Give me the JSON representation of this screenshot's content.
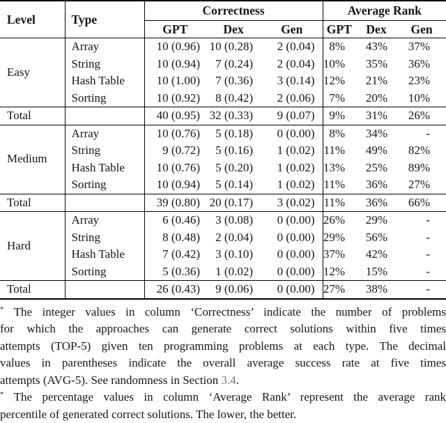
{
  "table": {
    "header": {
      "level": "Level",
      "type": "Type",
      "groups": [
        {
          "label": "Correctness",
          "cols": [
            "GPT",
            "Dex",
            "Gen"
          ]
        },
        {
          "label": "Average Rank",
          "cols": [
            "GPT",
            "Dex",
            "Gen"
          ]
        }
      ]
    },
    "sections": [
      {
        "level": "Easy",
        "rows": [
          {
            "type": "Array",
            "correctness": [
              "10 (0.96)",
              "10 (0.28)",
              "2 (0.04)"
            ],
            "avg_rank": [
              "8%",
              "43%",
              "37%"
            ]
          },
          {
            "type": "String",
            "correctness": [
              "10 (0.94)",
              "7 (0.24)",
              "2 (0.04)"
            ],
            "avg_rank": [
              "10%",
              "35%",
              "36%"
            ]
          },
          {
            "type": "Hash Table",
            "correctness": [
              "10 (1.00)",
              "7 (0.36)",
              "3 (0.14)"
            ],
            "avg_rank": [
              "12%",
              "21%",
              "23%"
            ]
          },
          {
            "type": "Sorting",
            "correctness": [
              "10 (0.92)",
              "8 (0.42)",
              "2 (0.06)"
            ],
            "avg_rank": [
              "7%",
              "20%",
              "10%"
            ]
          }
        ],
        "total": {
          "label": "Total",
          "correctness": [
            "40 (0.95)",
            "32 (0.33)",
            "9 (0.07)"
          ],
          "avg_rank": [
            "9%",
            "31%",
            "26%"
          ]
        }
      },
      {
        "level": "Medium",
        "rows": [
          {
            "type": "Array",
            "correctness": [
              "10 (0.76)",
              "5 (0.18)",
              "0 (0.00)"
            ],
            "avg_rank": [
              "8%",
              "34%",
              "-"
            ]
          },
          {
            "type": "String",
            "correctness": [
              "9 (0.72)",
              "5 (0.16)",
              "1 (0.02)"
            ],
            "avg_rank": [
              "11%",
              "49%",
              "82%"
            ]
          },
          {
            "type": "Hash Table",
            "correctness": [
              "10 (0.76)",
              "5 (0.20)",
              "1 (0.02)"
            ],
            "avg_rank": [
              "13%",
              "25%",
              "89%"
            ]
          },
          {
            "type": "Sorting",
            "correctness": [
              "10 (0.94)",
              "5 (0.14)",
              "1 (0.02)"
            ],
            "avg_rank": [
              "11%",
              "36%",
              "27%"
            ]
          }
        ],
        "total": {
          "label": "Total",
          "correctness": [
            "39 (0.80)",
            "20 (0.17)",
            "3 (0.02)"
          ],
          "avg_rank": [
            "11%",
            "36%",
            "66%"
          ]
        }
      },
      {
        "level": "Hard",
        "rows": [
          {
            "type": "Array",
            "correctness": [
              "6 (0.46)",
              "3 (0.08)",
              "0 (0.00)"
            ],
            "avg_rank": [
              "26%",
              "29%",
              "-"
            ]
          },
          {
            "type": "String",
            "correctness": [
              "8 (0.48)",
              "2 (0.04)",
              "0 (0.00)"
            ],
            "avg_rank": [
              "29%",
              "56%",
              "-"
            ]
          },
          {
            "type": "Hash Table",
            "correctness": [
              "7 (0.42)",
              "3 (0.10)",
              "0 (0.00)"
            ],
            "avg_rank": [
              "37%",
              "42%",
              "-"
            ]
          },
          {
            "type": "Sorting",
            "correctness": [
              "5 (0.36)",
              "1 (0.02)",
              "0 (0.00)"
            ],
            "avg_rank": [
              "12%",
              "15%",
              "-"
            ]
          }
        ],
        "total": {
          "label": "Total",
          "correctness": [
            "26 (0.43)",
            "9 (0.06)",
            "0 (0.00)"
          ],
          "avg_rank": [
            "27%",
            "38%",
            "-"
          ]
        }
      }
    ]
  },
  "footnotes": [
    {
      "marker": "*",
      "lines": [
        "The integer values in column ‘Correctness’ indicate the number of problems",
        "for which the approaches can generate correct solutions within five times",
        "attempts (TOP-5) given ten programming problems at each type. The decimal",
        "values in parentheses indicate the overall average success rate at five times",
        "attempts (AVG-5). See randomness in Section "
      ],
      "link": "3.4",
      "post": "."
    },
    {
      "marker": "*",
      "lines": [
        "The percentage values in column ‘Average Rank’ represent the average rank",
        "percentile of generated correct solutions. The lower, the better."
      ],
      "link": "",
      "post": ""
    }
  ],
  "colors": {
    "text": "#161616",
    "rule": "#000000",
    "link": "#72777d"
  }
}
